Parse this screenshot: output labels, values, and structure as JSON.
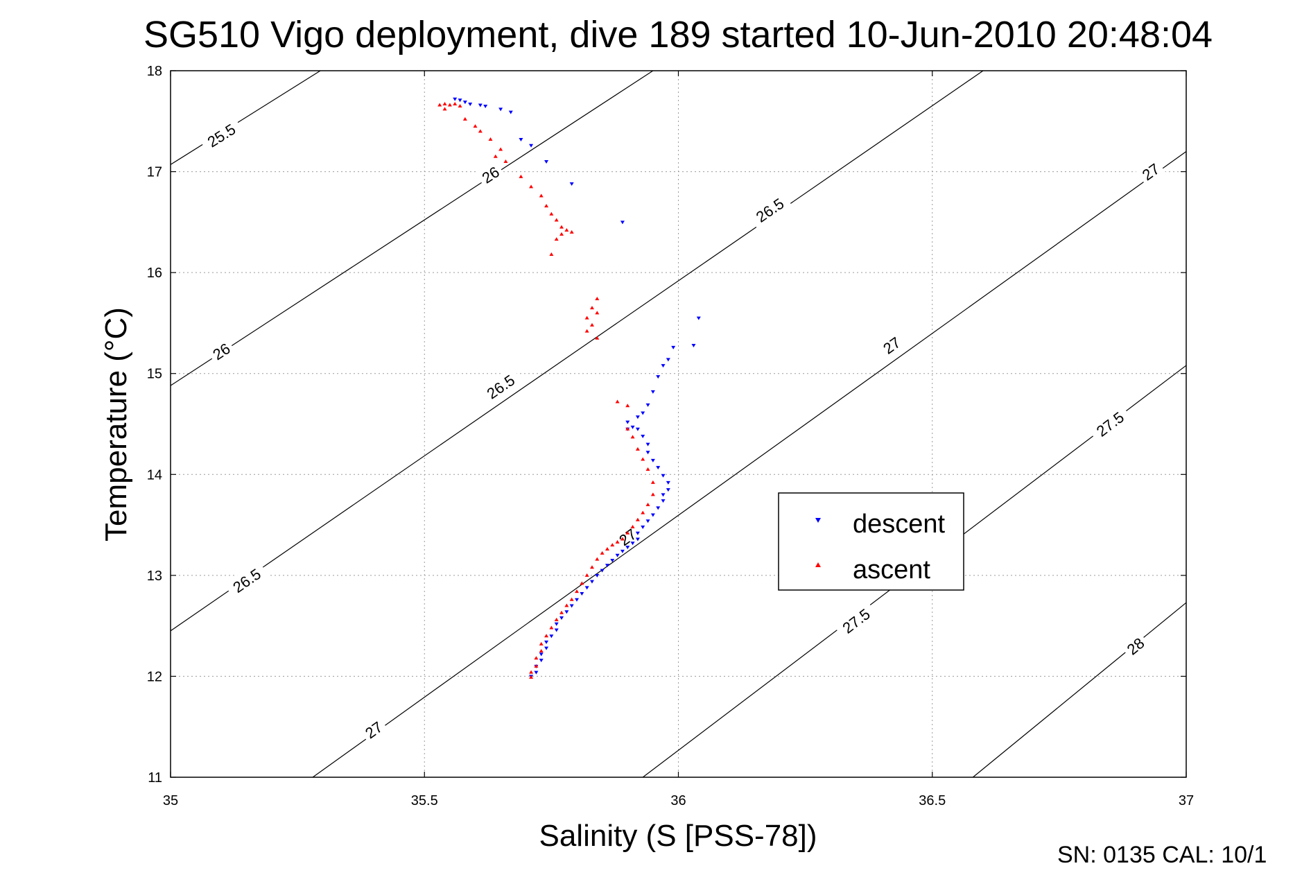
{
  "chart_data": {
    "type": "scatter",
    "title": "SG510 Vigo deployment, dive 189 started 10-Jun-2010 20:48:04",
    "xlabel": "Salinity (S [PSS-78])",
    "ylabel": "Temperature (°C)",
    "xlim": [
      35,
      37
    ],
    "ylim": [
      11,
      18
    ],
    "xticks": [
      "35",
      "35.5",
      "36",
      "36.5",
      "37"
    ],
    "yticks": [
      "11",
      "12",
      "13",
      "14",
      "15",
      "16",
      "17",
      "18"
    ],
    "grid": true,
    "legend_position": "center-right",
    "density_contours": [
      {
        "label": "25.5",
        "points": [
          [
            35.0,
            17.07
          ],
          [
            35.295,
            18.0
          ]
        ],
        "labels_at": [
          [
            35.1,
            17.36
          ]
        ]
      },
      {
        "label": "26",
        "points": [
          [
            35.0,
            14.88
          ],
          [
            35.95,
            18.0
          ]
        ],
        "labels_at": [
          [
            35.1,
            15.22
          ],
          [
            35.63,
            16.97
          ]
        ]
      },
      {
        "label": "26.5",
        "points": [
          [
            35.0,
            12.45
          ],
          [
            36.6,
            18.0
          ]
        ],
        "labels_at": [
          [
            35.15,
            12.95
          ],
          [
            35.65,
            14.87
          ],
          [
            36.18,
            16.62
          ]
        ]
      },
      {
        "label": "27",
        "points": [
          [
            35.28,
            11.0
          ],
          [
            37.0,
            17.2
          ]
        ],
        "labels_at": [
          [
            35.4,
            11.47
          ],
          [
            35.9,
            13.38
          ],
          [
            36.42,
            15.28
          ],
          [
            36.93,
            17.0
          ]
        ]
      },
      {
        "label": "27.5",
        "points": [
          [
            35.93,
            11.0
          ],
          [
            37.0,
            15.08
          ]
        ],
        "labels_at": [
          [
            36.35,
            12.55
          ],
          [
            36.85,
            14.5
          ]
        ]
      },
      {
        "label": "28",
        "points": [
          [
            36.58,
            11.0
          ],
          [
            37.0,
            12.73
          ]
        ],
        "labels_at": [
          [
            36.9,
            12.3
          ]
        ]
      }
    ],
    "series": [
      {
        "name": "descent",
        "color": "#0000ff",
        "marker": "triangle-down",
        "points": [
          [
            35.56,
            17.72
          ],
          [
            35.57,
            17.71
          ],
          [
            35.58,
            17.69
          ],
          [
            35.59,
            17.67
          ],
          [
            35.61,
            17.66
          ],
          [
            35.62,
            17.65
          ],
          [
            35.65,
            17.62
          ],
          [
            35.67,
            17.59
          ],
          [
            35.69,
            17.32
          ],
          [
            35.71,
            17.26
          ],
          [
            35.74,
            17.1
          ],
          [
            35.79,
            16.88
          ],
          [
            35.89,
            16.5
          ],
          [
            36.04,
            15.55
          ],
          [
            36.03,
            15.28
          ],
          [
            35.99,
            15.26
          ],
          [
            35.98,
            15.14
          ],
          [
            35.97,
            15.08
          ],
          [
            35.96,
            14.97
          ],
          [
            35.95,
            14.82
          ],
          [
            35.94,
            14.69
          ],
          [
            35.93,
            14.61
          ],
          [
            35.92,
            14.57
          ],
          [
            35.9,
            14.52
          ],
          [
            35.91,
            14.47
          ],
          [
            35.92,
            14.45
          ],
          [
            35.9,
            14.45
          ],
          [
            35.93,
            14.38
          ],
          [
            35.94,
            14.3
          ],
          [
            35.94,
            14.22
          ],
          [
            35.95,
            14.14
          ],
          [
            35.96,
            14.07
          ],
          [
            35.97,
            13.99
          ],
          [
            35.98,
            13.92
          ],
          [
            35.98,
            13.85
          ],
          [
            35.97,
            13.8
          ],
          [
            35.97,
            13.74
          ],
          [
            35.96,
            13.67
          ],
          [
            35.95,
            13.6
          ],
          [
            35.94,
            13.54
          ],
          [
            35.93,
            13.48
          ],
          [
            35.92,
            13.42
          ],
          [
            35.92,
            13.36
          ],
          [
            35.91,
            13.32
          ],
          [
            35.9,
            13.28
          ],
          [
            35.89,
            13.24
          ],
          [
            35.88,
            13.2
          ],
          [
            35.87,
            13.15
          ],
          [
            35.86,
            13.1
          ],
          [
            35.85,
            13.05
          ],
          [
            35.84,
            13.0
          ],
          [
            35.83,
            12.94
          ],
          [
            35.82,
            12.88
          ],
          [
            35.81,
            12.82
          ],
          [
            35.8,
            12.76
          ],
          [
            35.79,
            12.7
          ],
          [
            35.78,
            12.64
          ],
          [
            35.77,
            12.58
          ],
          [
            35.76,
            12.52
          ],
          [
            35.76,
            12.46
          ],
          [
            35.75,
            12.4
          ],
          [
            35.74,
            12.34
          ],
          [
            35.74,
            12.28
          ],
          [
            35.73,
            12.22
          ],
          [
            35.73,
            12.16
          ],
          [
            35.72,
            12.1
          ],
          [
            35.72,
            12.04
          ],
          [
            35.71,
            12.0
          ]
        ]
      },
      {
        "name": "ascent",
        "color": "#ff0000",
        "marker": "triangle-up",
        "points": [
          [
            35.53,
            17.66
          ],
          [
            35.54,
            17.67
          ],
          [
            35.55,
            17.66
          ],
          [
            35.56,
            17.67
          ],
          [
            35.57,
            17.65
          ],
          [
            35.54,
            17.62
          ],
          [
            35.58,
            17.52
          ],
          [
            35.6,
            17.45
          ],
          [
            35.61,
            17.4
          ],
          [
            35.63,
            17.32
          ],
          [
            35.65,
            17.22
          ],
          [
            35.64,
            17.15
          ],
          [
            35.66,
            17.1
          ],
          [
            35.69,
            16.95
          ],
          [
            35.71,
            16.85
          ],
          [
            35.73,
            16.76
          ],
          [
            35.74,
            16.66
          ],
          [
            35.75,
            16.58
          ],
          [
            35.76,
            16.52
          ],
          [
            35.77,
            16.45
          ],
          [
            35.78,
            16.42
          ],
          [
            35.79,
            16.4
          ],
          [
            35.77,
            16.38
          ],
          [
            35.76,
            16.33
          ],
          [
            35.75,
            16.18
          ],
          [
            35.84,
            15.74
          ],
          [
            35.83,
            15.65
          ],
          [
            35.84,
            15.6
          ],
          [
            35.82,
            15.55
          ],
          [
            35.83,
            15.48
          ],
          [
            35.82,
            15.42
          ],
          [
            35.84,
            15.35
          ],
          [
            35.88,
            14.72
          ],
          [
            35.9,
            14.68
          ],
          [
            35.9,
            14.45
          ],
          [
            35.91,
            14.37
          ],
          [
            35.92,
            14.25
          ],
          [
            35.93,
            14.15
          ],
          [
            35.94,
            14.05
          ],
          [
            35.95,
            13.92
          ],
          [
            35.95,
            13.8
          ],
          [
            35.94,
            13.7
          ],
          [
            35.93,
            13.62
          ],
          [
            35.92,
            13.55
          ],
          [
            35.91,
            13.48
          ],
          [
            35.9,
            13.42
          ],
          [
            35.89,
            13.36
          ],
          [
            35.88,
            13.33
          ],
          [
            35.87,
            13.3
          ],
          [
            35.86,
            13.26
          ],
          [
            35.85,
            13.22
          ],
          [
            35.84,
            13.16
          ],
          [
            35.83,
            13.08
          ],
          [
            35.82,
            13.0
          ],
          [
            35.81,
            12.92
          ],
          [
            35.8,
            12.84
          ],
          [
            35.79,
            12.76
          ],
          [
            35.78,
            12.7
          ],
          [
            35.77,
            12.63
          ],
          [
            35.76,
            12.56
          ],
          [
            35.75,
            12.48
          ],
          [
            35.74,
            12.4
          ],
          [
            35.73,
            12.32
          ],
          [
            35.73,
            12.25
          ],
          [
            35.72,
            12.18
          ],
          [
            35.72,
            12.1
          ],
          [
            35.71,
            12.04
          ],
          [
            35.71,
            11.99
          ]
        ]
      }
    ],
    "footer": "SN: 0135  CAL: 10/1"
  }
}
